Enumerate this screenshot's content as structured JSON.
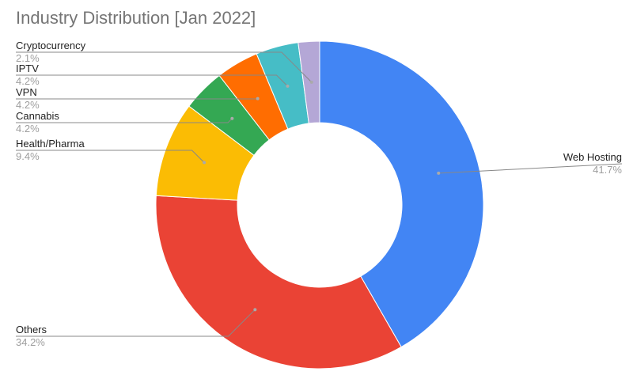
{
  "chart_data": {
    "type": "donut",
    "title": "Industry Distribution [Jan 2022]",
    "categories": [
      "Web Hosting",
      "Others",
      "Health/Pharma",
      "Cannabis",
      "VPN",
      "IPTV",
      "Cryptocurrency"
    ],
    "values": [
      41.7,
      34.2,
      9.4,
      4.2,
      4.2,
      4.2,
      2.1
    ],
    "value_labels": [
      "41.7%",
      "34.2%",
      "9.4%",
      "4.2%",
      "4.2%",
      "4.2%",
      "2.1%"
    ],
    "colors": [
      "#4285f4",
      "#ea4335",
      "#fbbc04",
      "#34a853",
      "#ff6d01",
      "#46bdc6",
      "#b4a7d6"
    ]
  }
}
